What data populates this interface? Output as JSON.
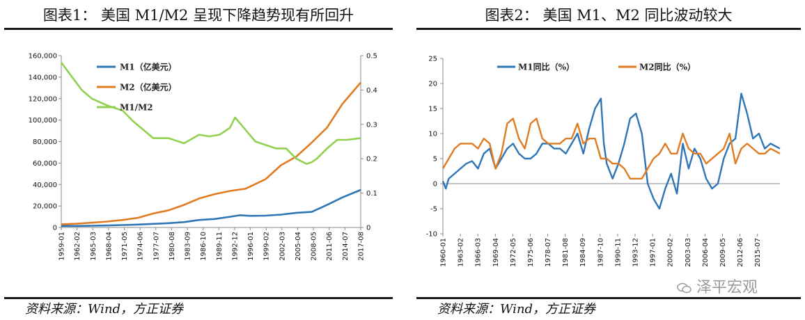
{
  "panels": {
    "left": {
      "title": "图表1：  美国 M1/M2 呈现下降趋势现有所回升",
      "source": "资料来源：Wind，方正证券"
    },
    "right": {
      "title": "图表2：  美国 M1、M2 同比波动较大",
      "source": "资料来源：Wind，方正证券",
      "watermark": "泽平宏观",
      "watermark_icon": "wechat-icon"
    }
  },
  "colors": {
    "m1": "#2E75B6",
    "m2": "#E07B20",
    "ratio": "#92D050"
  },
  "chart_data": [
    {
      "type": "line",
      "title": "美国 M1/M2 呈现下降趋势现有所回升",
      "x_tick_labels": [
        "1959-01",
        "1962-02",
        "1965-03",
        "1968-04",
        "1971-05",
        "1974-06",
        "1977-07",
        "1980-08",
        "1983-09",
        "1986-10",
        "1989-11",
        "1992-12",
        "1996-01",
        "1999-02",
        "2002-03",
        "2005-04",
        "2008-05",
        "2011-06",
        "2014-07",
        "2017-08"
      ],
      "x_range": [
        1959.0,
        2017.6
      ],
      "y_left_ticks": [
        "0",
        "20,000",
        "40,000",
        "60,000",
        "80,000",
        "100,000",
        "120,000",
        "140,000",
        "160,000"
      ],
      "y_left_range": [
        0,
        160000
      ],
      "y_right_ticks": [
        "0",
        "0.1",
        "0.2",
        "0.3",
        "0.4",
        "0.5"
      ],
      "y_right_range": [
        0,
        0.5
      ],
      "legend_position": "top-left",
      "series": [
        {
          "name": "M1（亿美元）",
          "axis": "left",
          "color_key": "m1",
          "x": [
            1959,
            1962,
            1965,
            1968,
            1971,
            1974,
            1977,
            1980,
            1983,
            1986,
            1989,
            1992,
            1994,
            1996,
            1999,
            2002,
            2005,
            2008,
            2011,
            2014,
            2017.6
          ],
          "values": [
            1400,
            1450,
            1650,
            1900,
            2250,
            2750,
            3400,
            4000,
            5000,
            7000,
            7900,
            10000,
            11400,
            10800,
            11000,
            12000,
            13700,
            14500,
            21000,
            28000,
            35000
          ]
        },
        {
          "name": "M2（亿美元）",
          "axis": "left",
          "color_key": "m2",
          "x": [
            1959,
            1962,
            1965,
            1968,
            1971,
            1974,
            1977,
            1980,
            1983,
            1986,
            1989,
            1992,
            1995,
            1999,
            2002,
            2005,
            2008,
            2011,
            2014,
            2017.6
          ],
          "values": [
            3000,
            3500,
            4500,
            5500,
            7000,
            9000,
            13000,
            16000,
            21000,
            27000,
            31000,
            34000,
            36000,
            45000,
            58000,
            66000,
            79000,
            93000,
            115000,
            135000
          ]
        },
        {
          "name": "M1/M2",
          "axis": "right",
          "color_key": "ratio",
          "x": [
            1959,
            1961,
            1963,
            1965,
            1968,
            1971,
            1973,
            1975,
            1977,
            1980,
            1983,
            1986,
            1988,
            1990,
            1992,
            1993,
            1995,
            1997,
            1999,
            2001,
            2003,
            2005,
            2007,
            2008,
            2009,
            2011,
            2013,
            2015,
            2017.6
          ],
          "values": [
            0.48,
            0.44,
            0.4,
            0.375,
            0.355,
            0.34,
            0.31,
            0.285,
            0.26,
            0.26,
            0.245,
            0.27,
            0.265,
            0.27,
            0.29,
            0.32,
            0.285,
            0.25,
            0.24,
            0.23,
            0.23,
            0.2,
            0.185,
            0.19,
            0.2,
            0.23,
            0.255,
            0.255,
            0.26
          ]
        }
      ]
    },
    {
      "type": "line",
      "title": "美国 M1、M2 同比波动较大",
      "x_tick_labels": [
        "1960-01",
        "1963-02",
        "1966-03",
        "1969-04",
        "1972-05",
        "1975-06",
        "1978-07",
        "1981-08",
        "1984-09",
        "1987-10",
        "1990-11",
        "1993-12",
        "1997-01",
        "2000-02",
        "2003-03",
        "2006-04",
        "2009-05",
        "2012-06",
        "2015-07"
      ],
      "x_range": [
        1960.0,
        2017.6
      ],
      "y_ticks": [
        "-10",
        "-5",
        "0",
        "5",
        "10",
        "15",
        "20",
        "25"
      ],
      "y_range": [
        -10,
        25
      ],
      "legend_position": "top-center",
      "series": [
        {
          "name": "M1同比（%）",
          "color_key": "m1",
          "x": [
            1960,
            1960.5,
            1961,
            1962,
            1963,
            1964,
            1965,
            1966,
            1967,
            1968,
            1969,
            1970,
            1971,
            1972,
            1973,
            1974,
            1975,
            1976,
            1977,
            1978,
            1979,
            1980,
            1981,
            1982,
            1983,
            1984,
            1985,
            1986,
            1987,
            1987.5,
            1988,
            1989,
            1990,
            1991,
            1992,
            1993,
            1994,
            1995,
            1996,
            1997,
            1998,
            1999,
            2000,
            2001,
            2002,
            2003,
            2004,
            2005,
            2006,
            2007,
            2008,
            2009,
            2010,
            2011,
            2012,
            2013,
            2014,
            2015,
            2016,
            2017.6
          ],
          "values": [
            0.5,
            -1,
            1,
            2,
            3,
            4,
            4.5,
            3,
            6,
            7,
            3,
            5,
            7,
            8,
            6,
            5,
            5,
            6,
            8,
            8,
            7,
            7,
            6,
            8,
            10,
            6,
            11,
            15,
            17,
            8,
            4,
            1,
            4,
            8,
            13,
            14,
            10,
            0,
            -3,
            -5,
            -1,
            2,
            -2,
            8,
            3,
            7,
            5,
            1,
            -1,
            0,
            5,
            8,
            9,
            18,
            14,
            9,
            10,
            7,
            8,
            7
          ]
        },
        {
          "name": "M2同比（%）",
          "color_key": "m2",
          "x": [
            1960,
            1961,
            1962,
            1963,
            1964,
            1965,
            1966,
            1967,
            1968,
            1969,
            1970,
            1971,
            1972,
            1973,
            1974,
            1975,
            1976,
            1977,
            1978,
            1979,
            1980,
            1981,
            1982,
            1983,
            1984,
            1985,
            1986,
            1987,
            1988,
            1989,
            1990,
            1991,
            1992,
            1993,
            1994,
            1995,
            1996,
            1997,
            1998,
            1999,
            2000,
            2001,
            2002,
            2003,
            2004,
            2005,
            2006,
            2007,
            2008,
            2009,
            2010,
            2011,
            2012,
            2013,
            2014,
            2015,
            2016,
            2017.6
          ],
          "values": [
            3,
            5,
            7,
            8,
            8,
            8,
            7,
            9,
            8,
            3,
            6,
            12,
            13,
            9,
            7,
            12,
            13,
            9,
            8,
            8,
            8,
            9,
            9,
            12,
            8,
            9,
            9,
            5,
            5,
            4,
            4,
            3,
            1,
            1,
            1,
            3,
            5,
            6,
            8,
            6,
            6,
            10,
            7,
            6,
            6,
            4,
            5,
            6,
            7,
            10,
            4,
            7,
            8,
            7,
            6,
            6,
            7,
            6
          ]
        }
      ]
    }
  ]
}
